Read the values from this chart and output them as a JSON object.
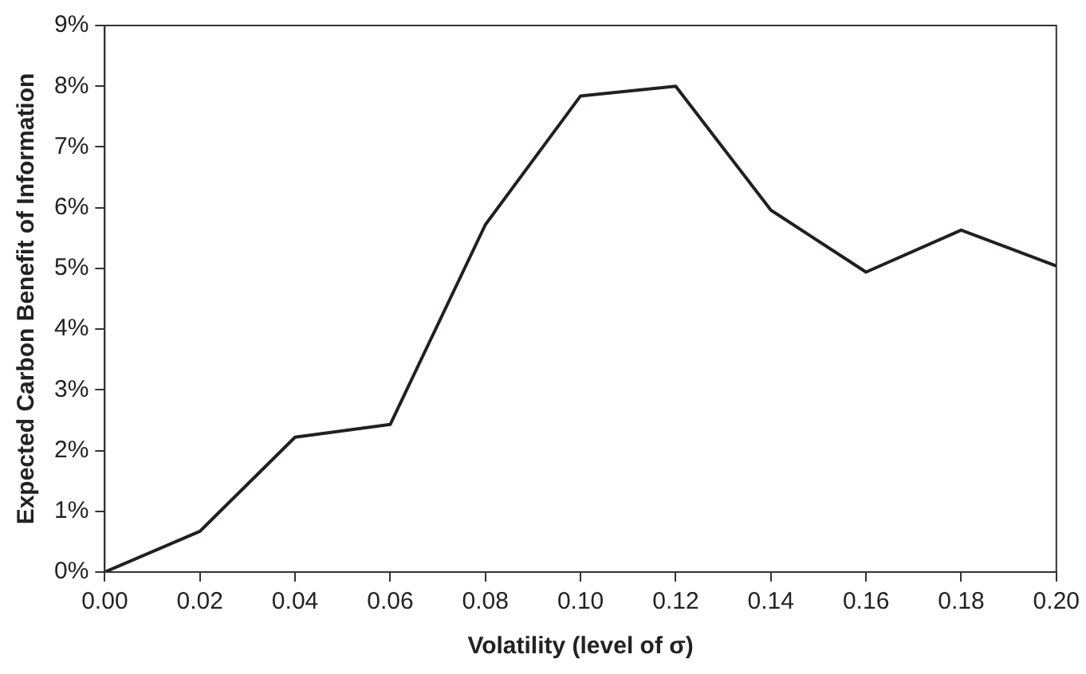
{
  "chart_data": {
    "type": "line",
    "xlabel": "Volatility (level of σ)",
    "ylabel": "Expected Carbon Benefit of Information",
    "x": [
      0,
      0.02,
      0.04,
      0.06,
      0.08,
      0.1,
      0.12,
      0.14,
      0.16,
      0.18,
      0.2
    ],
    "series": [
      {
        "color": "#231f20",
        "values": [
          0,
          0.67,
          2.22,
          2.43,
          5.72,
          7.84,
          8.0,
          5.96,
          4.94,
          5.63,
          5.04
        ]
      }
    ],
    "xlim": [
      0,
      0.2
    ],
    "xticks": [
      {
        "value": 0,
        "label": "0.00"
      },
      {
        "value": 0.02,
        "label": "0.02"
      },
      {
        "value": 0.04,
        "label": "0.04"
      },
      {
        "value": 0.06,
        "label": "0.06"
      },
      {
        "value": 0.08,
        "label": "0.08"
      },
      {
        "value": 0.1,
        "label": "0.10"
      },
      {
        "value": 0.12,
        "label": "0.12"
      },
      {
        "value": 0.14,
        "label": "0.14"
      },
      {
        "value": 0.16,
        "label": "0.16"
      },
      {
        "value": 0.18,
        "label": "0.18"
      },
      {
        "value": 0.2,
        "label": "0.20"
      }
    ],
    "ylim": [
      0,
      9
    ],
    "yticks": [
      {
        "value": 0,
        "label": "0%"
      },
      {
        "value": 1,
        "label": "1%"
      },
      {
        "value": 2,
        "label": "2%"
      },
      {
        "value": 3,
        "label": "3%"
      },
      {
        "value": 4,
        "label": "4%"
      },
      {
        "value": 5,
        "label": "5%"
      },
      {
        "value": 6,
        "label": "6%"
      },
      {
        "value": 7,
        "label": "7%"
      },
      {
        "value": 8,
        "label": "8%"
      },
      {
        "value": 9,
        "label": "9%"
      }
    ],
    "grid": false,
    "legend": false,
    "marker": "none",
    "line_style": "solid"
  }
}
